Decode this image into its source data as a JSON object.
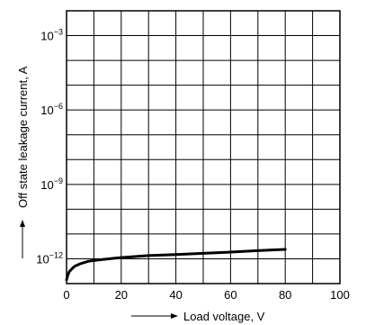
{
  "chart_data": {
    "type": "line",
    "xlabel": "Load voltage, V",
    "ylabel": "Off state leakage current, A",
    "xlim": [
      0,
      100
    ],
    "ylim": [
      -13,
      -2
    ],
    "yscale": "log",
    "grid": true,
    "x_ticks": [
      {
        "value": 0,
        "label": "0"
      },
      {
        "value": 20,
        "label": "20"
      },
      {
        "value": 40,
        "label": "40"
      },
      {
        "value": 60,
        "label": "60"
      },
      {
        "value": 80,
        "label": "80"
      },
      {
        "value": 100,
        "label": "100"
      }
    ],
    "y_ticks": [
      {
        "value": -3,
        "base": "10",
        "exp": "−3"
      },
      {
        "value": -6,
        "base": "10",
        "exp": "−6"
      },
      {
        "value": -9,
        "base": "10",
        "exp": "−9"
      },
      {
        "value": -12,
        "base": "10",
        "exp": "−12"
      }
    ],
    "series": [
      {
        "x": [
          0,
          0.5,
          1,
          2,
          3,
          5,
          8,
          12,
          20,
          30,
          40,
          50,
          60,
          70,
          80
        ],
        "y": [
          -12.85,
          -12.65,
          -12.52,
          -12.4,
          -12.3,
          -12.2,
          -12.1,
          -12.04,
          -11.95,
          -11.87,
          -11.83,
          -11.78,
          -11.73,
          -11.67,
          -11.62
        ]
      }
    ]
  }
}
